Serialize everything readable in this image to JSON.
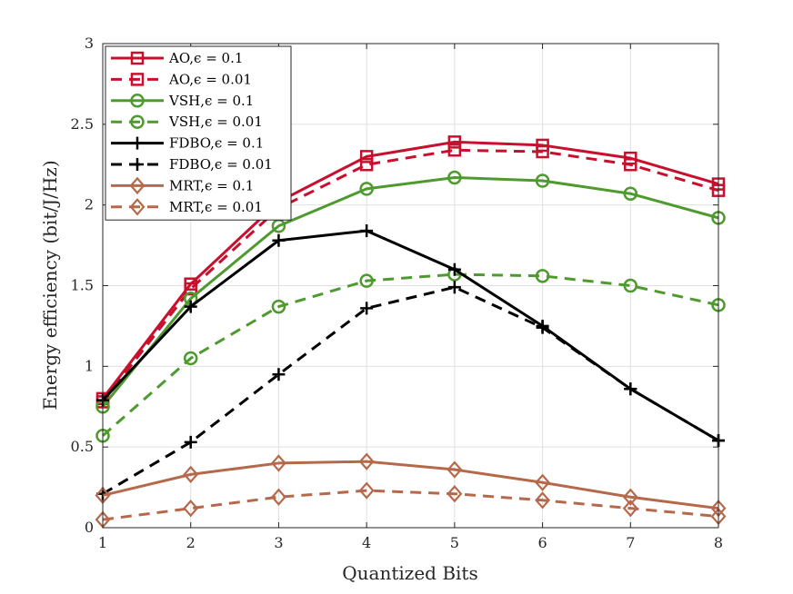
{
  "chart_data": {
    "type": "line",
    "title": "",
    "xlabel": "Quantized Bits",
    "ylabel": "Energy efficiency (bit/J/Hz)",
    "x": [
      1,
      2,
      3,
      4,
      5,
      6,
      7,
      8
    ],
    "xlim": [
      1,
      8
    ],
    "ylim": [
      0,
      3
    ],
    "xticks": [
      1,
      2,
      3,
      4,
      5,
      6,
      7,
      8
    ],
    "yticks": [
      0,
      0.5,
      1,
      1.5,
      2,
      2.5,
      3
    ],
    "ytick_labels": [
      "0",
      "0.5",
      "1",
      "1.5",
      "2",
      "2.5",
      "3"
    ],
    "grid": true,
    "legend_position": "top-left",
    "series": [
      {
        "name": "AO,ϵ = 0.1",
        "color": "#c8102e",
        "dash": "solid",
        "marker": "square",
        "values": [
          0.8,
          1.51,
          2.02,
          2.3,
          2.39,
          2.37,
          2.29,
          2.13
        ]
      },
      {
        "name": "AO,ϵ = 0.01",
        "color": "#c8102e",
        "dash": "dashed",
        "marker": "square",
        "values": [
          0.78,
          1.48,
          1.98,
          2.25,
          2.34,
          2.33,
          2.25,
          2.09
        ]
      },
      {
        "name": "VSH,ϵ = 0.1",
        "color": "#4f9a2f",
        "dash": "solid",
        "marker": "circle",
        "values": [
          0.75,
          1.42,
          1.87,
          2.1,
          2.17,
          2.15,
          2.07,
          1.92
        ]
      },
      {
        "name": "VSH,ϵ = 0.01",
        "color": "#4f9a2f",
        "dash": "dashed",
        "marker": "circle",
        "values": [
          0.57,
          1.05,
          1.37,
          1.53,
          1.57,
          1.56,
          1.5,
          1.38
        ]
      },
      {
        "name": "FDBO,ϵ = 0.1",
        "color": "#000000",
        "dash": "solid",
        "marker": "plus",
        "values": [
          0.79,
          1.37,
          1.78,
          1.84,
          1.6,
          1.25,
          0.86,
          0.54
        ]
      },
      {
        "name": "FDBO,ϵ = 0.01",
        "color": "#000000",
        "dash": "dashed",
        "marker": "plus",
        "values": [
          0.21,
          0.53,
          0.95,
          1.36,
          1.49,
          1.24,
          0.86,
          0.54
        ]
      },
      {
        "name": "MRT,ϵ = 0.1",
        "color": "#b5694a",
        "dash": "solid",
        "marker": "diamond",
        "values": [
          0.2,
          0.33,
          0.4,
          0.41,
          0.36,
          0.28,
          0.19,
          0.12
        ]
      },
      {
        "name": "MRT,ϵ = 0.01",
        "color": "#b5694a",
        "dash": "dashed",
        "marker": "diamond",
        "values": [
          0.05,
          0.12,
          0.19,
          0.23,
          0.21,
          0.17,
          0.12,
          0.07
        ]
      }
    ]
  }
}
